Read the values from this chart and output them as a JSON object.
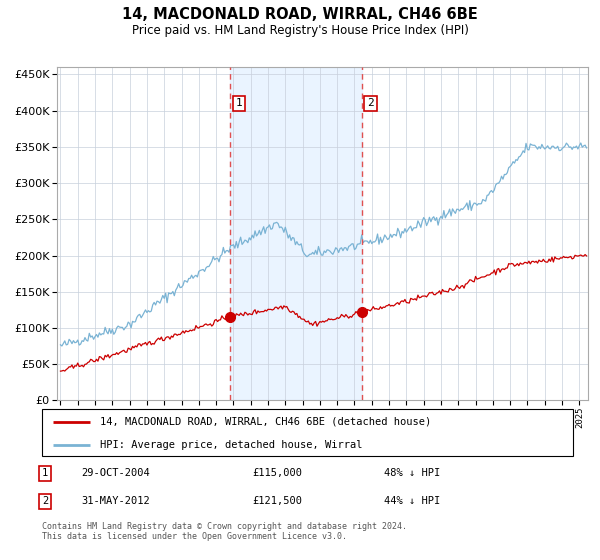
{
  "title": "14, MACDONALD ROAD, WIRRAL, CH46 6BE",
  "subtitle": "Price paid vs. HM Land Registry's House Price Index (HPI)",
  "hpi_color": "#7ab3d4",
  "property_color": "#cc0000",
  "marker_color": "#cc0000",
  "bg_shading_color": "#ddeeff",
  "purchase1_dashed_color": "#e05050",
  "purchase2_dashed_color": "#a0a0a0",
  "purchase1_x": 2004.83,
  "purchase2_x": 2012.42,
  "purchase1_price": 115000,
  "purchase2_price": 121500,
  "ylim": [
    0,
    460000
  ],
  "xlim_start": 1994.8,
  "xlim_end": 2025.5,
  "yticks": [
    0,
    50000,
    100000,
    150000,
    200000,
    250000,
    300000,
    350000,
    400000,
    450000
  ],
  "legend_entry1": "14, MACDONALD ROAD, WIRRAL, CH46 6BE (detached house)",
  "legend_entry2": "HPI: Average price, detached house, Wirral",
  "table_row1": [
    "1",
    "29-OCT-2004",
    "£115,000",
    "48% ↓ HPI"
  ],
  "table_row2": [
    "2",
    "31-MAY-2012",
    "£121,500",
    "44% ↓ HPI"
  ],
  "footer": "Contains HM Land Registry data © Crown copyright and database right 2024.\nThis data is licensed under the Open Government Licence v3.0."
}
